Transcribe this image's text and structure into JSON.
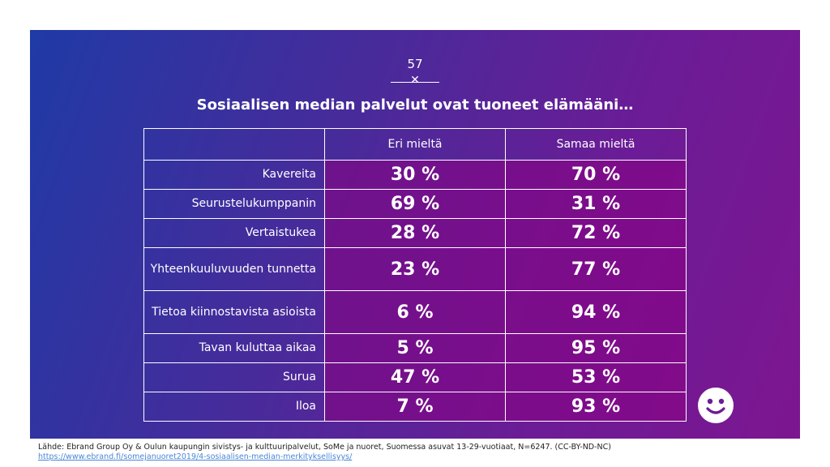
{
  "page_number": "57",
  "title": "Sosiaalisen median palvelut ovat tuoneet elämääni…",
  "table": {
    "col_headers": [
      "",
      "Eri mieltä",
      "Samaa mieltä"
    ],
    "rows": [
      {
        "label": "Kavereita",
        "disagree": "30 %",
        "agree": "70 %"
      },
      {
        "label": "Seurustelukumppanin",
        "disagree": "69 %",
        "agree": "31 %"
      },
      {
        "label": "Vertaistukea",
        "disagree": "28 %",
        "agree": "72 %"
      },
      {
        "label": "Yhteenkuuluvuuden tunnetta",
        "disagree": "23 %",
        "agree": "77 %"
      },
      {
        "label": "Tietoa kiinnostavista asioista",
        "disagree": "6 %",
        "agree": "94 %"
      },
      {
        "label": "Tavan kuluttaa aikaa",
        "disagree": "5 %",
        "agree": "95 %"
      },
      {
        "label": "Surua",
        "disagree": "47 %",
        "agree": "53 %"
      },
      {
        "label": "Iloa",
        "disagree": "7 %",
        "agree": "93 %"
      }
    ]
  },
  "footer": {
    "source": "Lähde:  Ebrand Group Oy & Oulun kaupungin sivistys- ja kulttuuripalvelut, SoMe ja nuoret, Suomessa asuvat 13-29-vuotiaat, N=6247. (CC-BY-ND-NC)",
    "link": "https://www.ebrand.fi/somejanuoret2019/4-sosiaalisen-median-merkityksellisyys/"
  },
  "icons": {
    "decoration": "x-icon",
    "corner": "smiley-icon"
  },
  "colors": {
    "gradient_start": "#1f3aa6",
    "gradient_end": "#7d1690",
    "cell_fill": "#8c0082"
  }
}
